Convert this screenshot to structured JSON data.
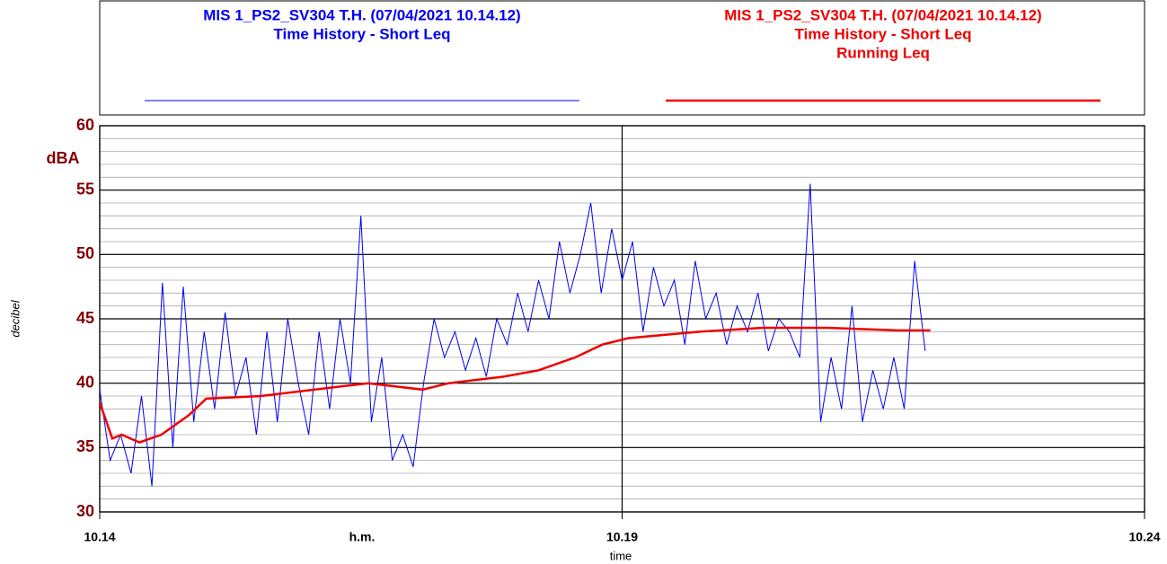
{
  "chart_data": {
    "type": "line",
    "x_unit_label": "h.m.",
    "xlabel": "time",
    "ylabel": "decibel",
    "y_unit_label": "dBA",
    "xlim": [
      10.14,
      10.24
    ],
    "xticks": [
      10.14,
      10.19,
      10.24
    ],
    "ylim": [
      30,
      60
    ],
    "yticks": [
      30,
      35,
      40,
      45,
      50,
      55,
      60
    ],
    "grid": true,
    "minor_grid_step": 1,
    "series": [
      {
        "name": [
          "MIS 1_PS2_SV304 T.H. (07/04/2021 10.14.12)",
          "Time History - Short Leq"
        ],
        "color": "#0000ee",
        "x": [
          10.14,
          10.141,
          10.142,
          10.143,
          10.144,
          10.145,
          10.146,
          10.147,
          10.148,
          10.149,
          10.15,
          10.151,
          10.152,
          10.153,
          10.154,
          10.155,
          10.156,
          10.157,
          10.158,
          10.159,
          10.16,
          10.161,
          10.162,
          10.163,
          10.164,
          10.165,
          10.166,
          10.167,
          10.168,
          10.169,
          10.17,
          10.171,
          10.172,
          10.173,
          10.174,
          10.175,
          10.176,
          10.177,
          10.178,
          10.179,
          10.18,
          10.181,
          10.182,
          10.183,
          10.184,
          10.185,
          10.186,
          10.187,
          10.188,
          10.189,
          10.19,
          10.191,
          10.192,
          10.193,
          10.194,
          10.195,
          10.196,
          10.197,
          10.198,
          10.199,
          10.2,
          10.201,
          10.202,
          10.203,
          10.204,
          10.205,
          10.206,
          10.207,
          10.208,
          10.209,
          10.21,
          10.211,
          10.212,
          10.213,
          10.214,
          10.215,
          10.216,
          10.217,
          10.218,
          10.219
        ],
        "values": [
          39.5,
          34,
          36,
          33,
          39,
          32,
          47.8,
          35,
          47.5,
          37,
          44,
          38,
          45.5,
          39,
          42,
          36,
          44,
          37,
          45,
          40,
          36,
          44,
          38,
          45,
          40,
          53,
          37,
          42,
          34,
          36,
          33.5,
          40,
          45,
          42,
          44,
          41,
          43.5,
          40.5,
          45,
          43,
          47,
          44,
          48,
          45,
          51,
          47,
          50,
          54,
          47,
          52,
          48,
          51,
          44,
          49,
          46,
          48,
          43,
          49.5,
          45,
          47,
          43,
          46,
          44,
          47,
          42.5,
          45,
          44,
          42,
          55.5,
          37,
          42,
          38,
          46,
          37,
          41,
          38,
          42,
          38,
          49.5,
          42.5
        ]
      },
      {
        "name": [
          "MIS 1_PS2_SV304 T.H. (07/04/2021 10.14.12)",
          "Time History - Short Leq",
          "Running Leq"
        ],
        "color": "#ee0000",
        "x": [
          10.14,
          10.1412,
          10.1421,
          10.1438,
          10.1459,
          10.1485,
          10.1502,
          10.1554,
          10.1606,
          10.1657,
          10.1709,
          10.1734,
          10.1786,
          10.182,
          10.1855,
          10.1881,
          10.1906,
          10.1975,
          10.2035,
          10.2096,
          10.2164,
          10.2195
        ],
        "values": [
          38.5,
          35.7,
          36,
          35.4,
          36,
          37.5,
          38.8,
          39,
          39.5,
          40,
          39.5,
          40,
          40.5,
          41,
          42,
          43,
          43.5,
          44,
          44.3,
          44.3,
          44.1,
          44.1
        ]
      }
    ]
  }
}
